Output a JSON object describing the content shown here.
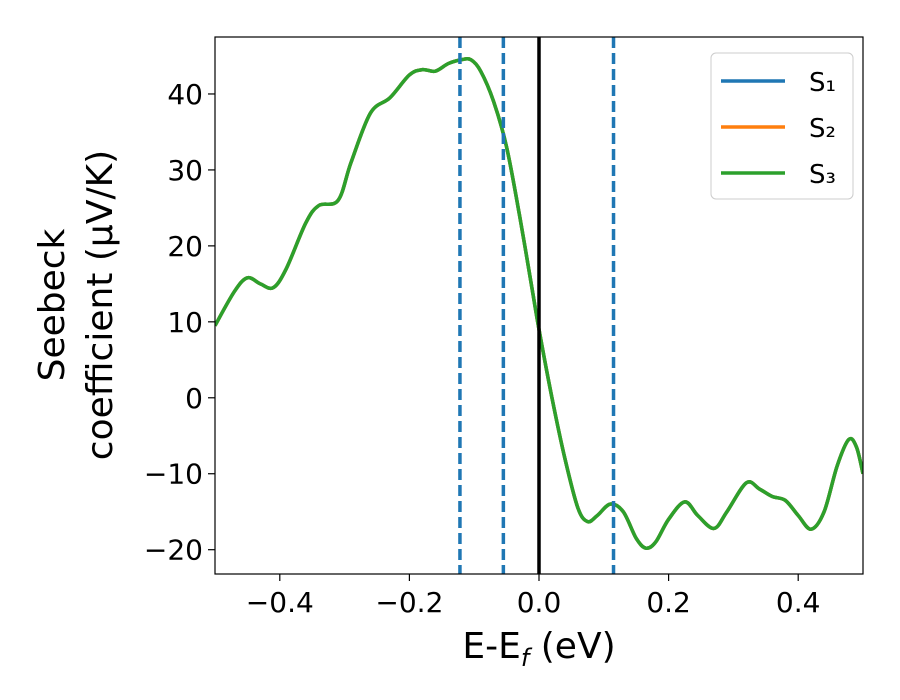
{
  "chart_data": {
    "type": "line",
    "x": [
      -0.5,
      -0.47,
      -0.45,
      -0.43,
      -0.41,
      -0.39,
      -0.36,
      -0.34,
      -0.31,
      -0.29,
      -0.26,
      -0.23,
      -0.2,
      -0.18,
      -0.16,
      -0.14,
      -0.12,
      -0.105,
      -0.09,
      -0.07,
      -0.05,
      -0.03,
      -0.01,
      0,
      0.02,
      0.04,
      0.06,
      0.075,
      0.09,
      0.11,
      0.13,
      0.15,
      0.165,
      0.18,
      0.2,
      0.225,
      0.245,
      0.27,
      0.29,
      0.32,
      0.34,
      0.36,
      0.38,
      0.4,
      0.42,
      0.44,
      0.46,
      0.478,
      0.49,
      0.5
    ],
    "series": [
      {
        "name": "S₁",
        "color": "#1f77b4",
        "values": [
          9.5,
          14,
          15.8,
          15,
          14.5,
          17,
          23,
          25.3,
          26,
          31,
          37.5,
          39.5,
          42.5,
          43.2,
          43,
          44,
          44.5,
          44.5,
          43,
          39,
          33,
          24,
          14,
          9,
          0,
          -8,
          -14.5,
          -16.3,
          -15.5,
          -14,
          -15,
          -18.5,
          -19.8,
          -19,
          -16,
          -13.7,
          -15.5,
          -17.2,
          -15,
          -11.2,
          -12,
          -13,
          -13.5,
          -15.5,
          -17.3,
          -15,
          -9,
          -5.5,
          -6.5,
          -10
        ]
      },
      {
        "name": "S₂",
        "color": "#ff7f0e",
        "values": [
          9.5,
          14,
          15.8,
          15,
          14.5,
          17,
          23,
          25.3,
          26,
          31,
          37.5,
          39.5,
          42.5,
          43.2,
          43,
          44,
          44.5,
          44.5,
          43,
          39,
          33,
          24,
          14,
          9,
          0,
          -8,
          -14.5,
          -16.3,
          -15.5,
          -14,
          -15,
          -18.5,
          -19.8,
          -19,
          -16,
          -13.7,
          -15.5,
          -17.2,
          -15,
          -11.2,
          -12,
          -13,
          -13.5,
          -15.5,
          -17.3,
          -15,
          -9,
          -5.5,
          -6.5,
          -10
        ]
      },
      {
        "name": "S₃",
        "color": "#2ca02c",
        "values": [
          9.5,
          14,
          15.8,
          15,
          14.5,
          17,
          23,
          25.3,
          26,
          31,
          37.5,
          39.5,
          42.5,
          43.2,
          43,
          44,
          44.5,
          44.5,
          43,
          39,
          33,
          24,
          14,
          9,
          0,
          -8,
          -14.5,
          -16.3,
          -15.5,
          -14,
          -15,
          -18.5,
          -19.8,
          -19,
          -16,
          -13.7,
          -15.5,
          -17.2,
          -15,
          -11.2,
          -12,
          -13,
          -13.5,
          -15.5,
          -17.3,
          -15,
          -9,
          -5.5,
          -6.5,
          -10
        ]
      }
    ],
    "vlines": [
      {
        "x": -0.122,
        "style": "dashed",
        "color": "#1f77b4"
      },
      {
        "x": -0.055,
        "style": "dashed",
        "color": "#1f77b4"
      },
      {
        "x": 0,
        "style": "solid",
        "color": "#000000"
      },
      {
        "x": 0.115,
        "style": "dashed",
        "color": "#1f77b4"
      }
    ],
    "xlabel": {
      "main": "E-E",
      "sub": "f",
      "rest": " (eV)"
    },
    "ylabel": [
      "Seebeck",
      "coefficient  (μV/K)"
    ],
    "xlim": [
      -0.5,
      0.5
    ],
    "ylim": [
      -23.2,
      47.5
    ],
    "xticks": [
      {
        "value": -0.4,
        "label": "−0.4"
      },
      {
        "value": -0.2,
        "label": "−0.2"
      },
      {
        "value": 0,
        "label": "0.0"
      },
      {
        "value": 0.2,
        "label": "0.2"
      },
      {
        "value": 0.4,
        "label": "0.4"
      }
    ],
    "yticks": [
      {
        "value": -20,
        "label": "−20"
      },
      {
        "value": -10,
        "label": "−10"
      },
      0,
      10,
      20,
      30,
      40
    ],
    "legend": "upper right",
    "grid": false
  }
}
